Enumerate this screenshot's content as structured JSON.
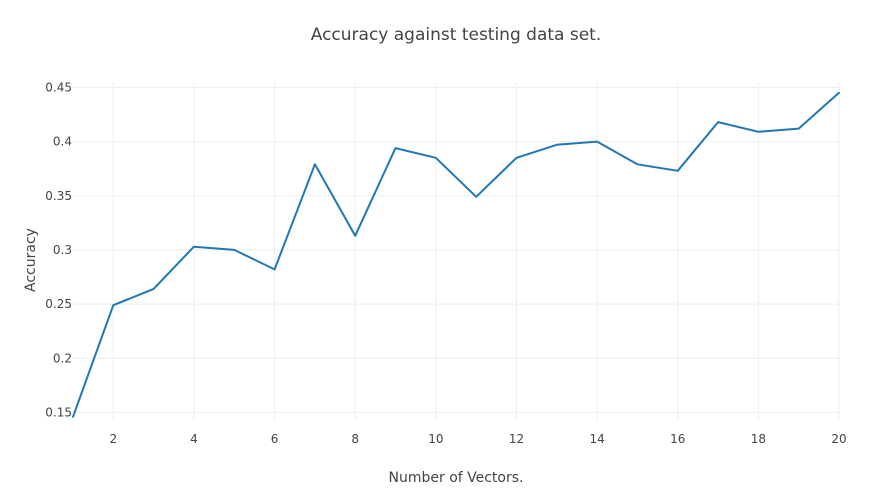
{
  "chart_data": {
    "type": "line",
    "title": "Accuracy against testing data set.",
    "xlabel": "Number of Vectors.",
    "ylabel": "Accuracy",
    "xlim": [
      1,
      20
    ],
    "ylim": [
      0.143,
      0.455
    ],
    "x_ticks": [
      2,
      4,
      6,
      8,
      10,
      12,
      14,
      16,
      18,
      20
    ],
    "y_ticks": [
      0.15,
      0.2,
      0.25,
      0.3,
      0.35,
      0.4,
      0.45
    ],
    "y_tick_labels": [
      "0.15",
      "0.2",
      "0.25",
      "0.3",
      "0.35",
      "0.4",
      "0.45"
    ],
    "grid": true,
    "line_color": "#1f77b4",
    "series": [
      {
        "x": [
          1,
          2,
          3,
          4,
          5,
          6,
          7,
          8,
          9,
          10,
          11,
          12,
          13,
          14,
          15,
          16,
          17,
          18,
          19,
          20
        ],
        "values": [
          0.146,
          0.249,
          0.264,
          0.303,
          0.3,
          0.282,
          0.379,
          0.313,
          0.394,
          0.385,
          0.349,
          0.385,
          0.397,
          0.4,
          0.379,
          0.373,
          0.418,
          0.409,
          0.412,
          0.445
        ]
      }
    ]
  }
}
